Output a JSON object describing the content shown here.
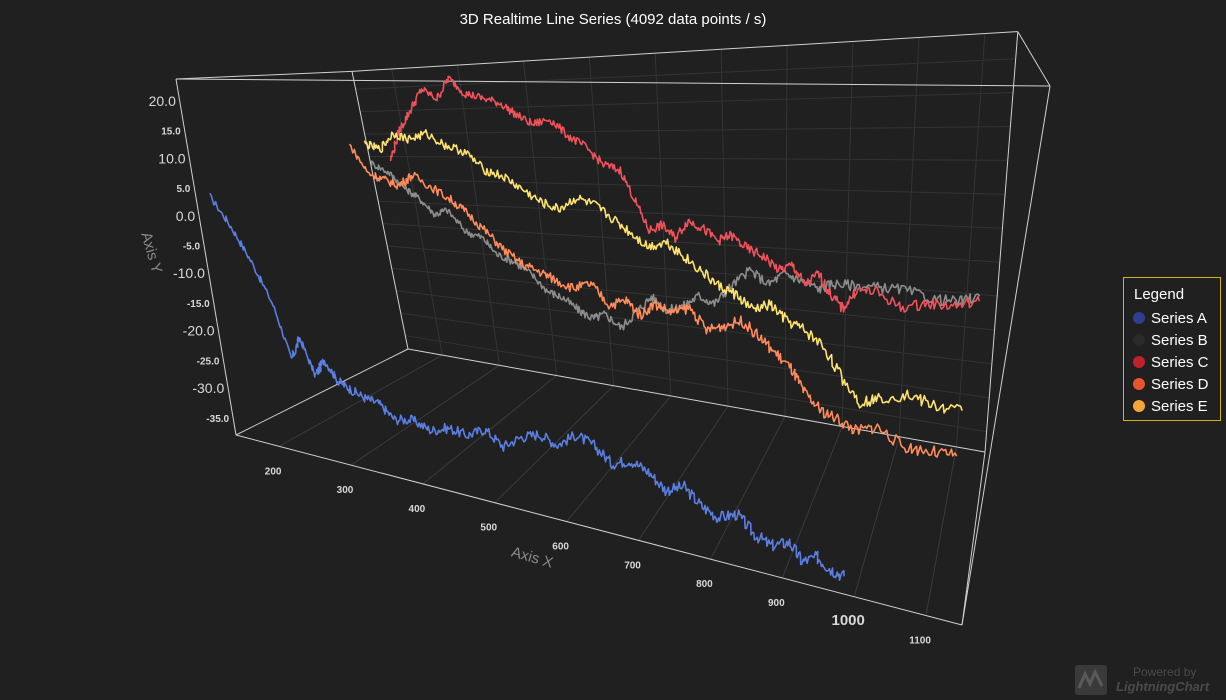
{
  "chart_data": {
    "type": "line",
    "title": "3D Realtime Line Series (4092 data points / s)",
    "xlabel": "Axis X",
    "ylabel": "Axis Y",
    "xlim": [
      140,
      1150
    ],
    "ylim": [
      -38,
      24
    ],
    "x_ticks": [
      "200",
      "300",
      "400",
      "500",
      "600",
      "700",
      "800",
      "900",
      "1000",
      "1100"
    ],
    "y_ticks": [
      "20.0",
      "15.0",
      "10.0",
      "5.0",
      "0.0",
      "-5.0",
      "-10.0",
      "-15.0",
      "-20.0",
      "-25.0",
      "-30.0",
      "-35.0"
    ],
    "legend": {
      "title": "Legend",
      "position": "right"
    },
    "series": [
      {
        "name": "Series A",
        "legend_color": "#2e3f8f",
        "line_color": "#5b7fe0",
        "points": [
          [
            140,
            3
          ],
          [
            160,
            -2
          ],
          [
            180,
            -8
          ],
          [
            200,
            -15
          ],
          [
            215,
            -24
          ],
          [
            230,
            -20
          ],
          [
            245,
            -26
          ],
          [
            260,
            -23
          ],
          [
            275,
            -26
          ],
          [
            290,
            -27
          ],
          [
            310,
            -28
          ],
          [
            330,
            -28.5
          ],
          [
            350,
            -30.5
          ],
          [
            375,
            -30
          ],
          [
            400,
            -31
          ],
          [
            425,
            -30
          ],
          [
            450,
            -30.5
          ],
          [
            475,
            -29
          ],
          [
            500,
            -31
          ],
          [
            525,
            -29
          ],
          [
            550,
            -28
          ],
          [
            575,
            -29
          ],
          [
            600,
            -27
          ],
          [
            625,
            -28
          ],
          [
            650,
            -30
          ],
          [
            675,
            -29
          ],
          [
            700,
            -30
          ],
          [
            725,
            -32
          ],
          [
            750,
            -31
          ],
          [
            775,
            -33
          ],
          [
            800,
            -34
          ],
          [
            825,
            -33
          ],
          [
            850,
            -35
          ],
          [
            875,
            -36
          ],
          [
            900,
            -35
          ],
          [
            920,
            -37
          ],
          [
            940,
            -36
          ],
          [
            960,
            -37
          ],
          [
            980,
            -37.5
          ]
        ]
      },
      {
        "name": "Series B",
        "legend_color": "#2a2a2a",
        "line_color": "#8c8c8c",
        "points": [
          [
            190,
            5
          ],
          [
            215,
            3
          ],
          [
            235,
            0
          ],
          [
            255,
            -2
          ],
          [
            275,
            -5
          ],
          [
            295,
            -4
          ],
          [
            320,
            -8
          ],
          [
            345,
            -9
          ],
          [
            365,
            -12
          ],
          [
            390,
            -13
          ],
          [
            415,
            -15
          ],
          [
            440,
            -18
          ],
          [
            465,
            -19
          ],
          [
            490,
            -21
          ],
          [
            510,
            -22
          ],
          [
            530,
            -21
          ],
          [
            555,
            -23
          ],
          [
            580,
            -20
          ],
          [
            605,
            -17
          ],
          [
            630,
            -19
          ],
          [
            655,
            -18
          ],
          [
            680,
            -16
          ],
          [
            705,
            -17
          ],
          [
            730,
            -14
          ],
          [
            760,
            -11
          ],
          [
            790,
            -13
          ],
          [
            815,
            -11
          ],
          [
            840,
            -12
          ],
          [
            870,
            -13
          ],
          [
            890,
            -12
          ],
          [
            920,
            -12
          ],
          [
            960,
            -12
          ],
          [
            1000,
            -12
          ],
          [
            1050,
            -13
          ],
          [
            1090,
            -13
          ],
          [
            1120,
            -12
          ]
        ]
      },
      {
        "name": "Series C",
        "legend_color": "#c0212a",
        "line_color": "#f0525c",
        "points": [
          [
            230,
            6
          ],
          [
            250,
            12
          ],
          [
            270,
            16
          ],
          [
            290,
            20
          ],
          [
            310,
            18
          ],
          [
            330,
            22
          ],
          [
            350,
            19
          ],
          [
            375,
            18
          ],
          [
            400,
            17
          ],
          [
            420,
            15
          ],
          [
            445,
            13
          ],
          [
            470,
            14
          ],
          [
            495,
            11
          ],
          [
            520,
            9
          ],
          [
            545,
            6
          ],
          [
            570,
            5
          ],
          [
            590,
            0
          ],
          [
            610,
            -5
          ],
          [
            630,
            -4
          ],
          [
            650,
            -6
          ],
          [
            670,
            -3
          ],
          [
            690,
            -4
          ],
          [
            715,
            -6
          ],
          [
            735,
            -5
          ],
          [
            760,
            -7
          ],
          [
            785,
            -8
          ],
          [
            810,
            -10
          ],
          [
            830,
            -9
          ],
          [
            850,
            -12
          ],
          [
            870,
            -10
          ],
          [
            890,
            -13
          ],
          [
            910,
            -15
          ],
          [
            930,
            -12
          ],
          [
            960,
            -12
          ],
          [
            1000,
            -14
          ],
          [
            1040,
            -13
          ],
          [
            1080,
            -13
          ],
          [
            1120,
            -12
          ]
        ]
      },
      {
        "name": "Series D",
        "legend_color": "#e8542e",
        "line_color": "#ff8c5a",
        "points": [
          [
            250,
            11
          ],
          [
            270,
            6
          ],
          [
            290,
            5
          ],
          [
            310,
            4
          ],
          [
            330,
            6
          ],
          [
            355,
            4
          ],
          [
            380,
            2
          ],
          [
            400,
            0
          ],
          [
            425,
            -3
          ],
          [
            450,
            -6
          ],
          [
            475,
            -8
          ],
          [
            500,
            -9
          ],
          [
            520,
            -10
          ],
          [
            545,
            -11
          ],
          [
            570,
            -10
          ],
          [
            595,
            -13
          ],
          [
            620,
            -12
          ],
          [
            640,
            -14
          ],
          [
            660,
            -12
          ],
          [
            685,
            -13
          ],
          [
            710,
            -12
          ],
          [
            735,
            -15
          ],
          [
            760,
            -14
          ],
          [
            785,
            -13
          ],
          [
            810,
            -15
          ],
          [
            835,
            -17
          ],
          [
            860,
            -19
          ],
          [
            880,
            -22
          ],
          [
            905,
            -24
          ],
          [
            935,
            -25
          ],
          [
            960,
            -26
          ],
          [
            990,
            -25
          ],
          [
            1030,
            -27
          ],
          [
            1070,
            -27
          ],
          [
            1110,
            -27
          ]
        ]
      },
      {
        "name": "Series E",
        "legend_color": "#f5a63b",
        "line_color": "#ffe36e",
        "points": [
          [
            260,
            11
          ],
          [
            280,
            10
          ],
          [
            300,
            13
          ],
          [
            320,
            12
          ],
          [
            345,
            13
          ],
          [
            370,
            11
          ],
          [
            395,
            10
          ],
          [
            420,
            7
          ],
          [
            445,
            6
          ],
          [
            470,
            4
          ],
          [
            495,
            2
          ],
          [
            520,
            1
          ],
          [
            545,
            3
          ],
          [
            570,
            2
          ],
          [
            595,
            0
          ],
          [
            620,
            -2
          ],
          [
            645,
            -4
          ],
          [
            670,
            -3
          ],
          [
            695,
            -5
          ],
          [
            720,
            -7
          ],
          [
            745,
            -9
          ],
          [
            770,
            -10
          ],
          [
            795,
            -12
          ],
          [
            820,
            -11
          ],
          [
            845,
            -13
          ],
          [
            870,
            -14
          ],
          [
            900,
            -16
          ],
          [
            930,
            -20
          ],
          [
            960,
            -23
          ],
          [
            990,
            -22
          ],
          [
            1030,
            -21
          ],
          [
            1070,
            -22
          ],
          [
            1110,
            -22
          ]
        ]
      }
    ]
  },
  "watermark": {
    "powered": "Powered by",
    "brand": "LightningChart"
  }
}
